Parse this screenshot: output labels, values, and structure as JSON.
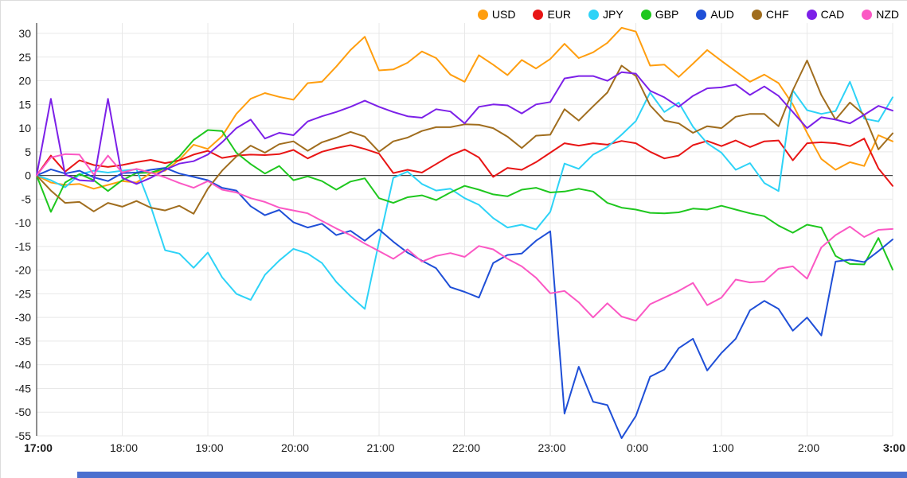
{
  "window": {
    "title": "Currency strength line chart"
  },
  "legend": {
    "position": "top-right"
  },
  "bottom_bar_color": "#4a6fcf",
  "chart_data": {
    "type": "line",
    "title": "",
    "xlabel": "",
    "ylabel": "",
    "ylim": [
      -55,
      30
    ],
    "ytick_step": 5,
    "grid": true,
    "zero_line": true,
    "x_start": "17:00",
    "x_end": "3:00",
    "sample_interval_minutes": 10,
    "points_per_series": 61,
    "hour_tick_labels": [
      "17:00",
      "18:00",
      "19:00",
      "20:00",
      "21:00",
      "22:00",
      "23:00",
      "0:00",
      "1:00",
      "2:00",
      "3:00"
    ],
    "bold_tick_labels": [
      "17:00",
      "3:00"
    ],
    "axis_color": "#444444",
    "grid_color": "#e8e8e8",
    "label_color": "#1a1a1a",
    "series": [
      {
        "name": "USD",
        "color": "#ff9e0f",
        "values": [
          0,
          -1.5,
          -2,
          -1.8,
          -2.8,
          -2,
          -1.2,
          -1.5,
          0.5,
          1,
          3.3,
          6.5,
          5.6,
          8.3,
          13,
          16.2,
          17.4,
          16.6,
          16,
          19.5,
          19.8,
          23,
          26.5,
          29.3,
          22.2,
          22.4,
          23.8,
          26.2,
          24.8,
          21.3,
          19.8,
          25.4,
          23.4,
          21.2,
          24.4,
          22.6,
          24.6,
          27.8,
          24.8,
          26,
          28,
          31.2,
          30.4,
          23.2,
          23.4,
          20.8,
          23.6,
          26.5,
          24.2,
          22,
          19.8,
          21.3,
          19.5,
          15,
          9,
          3.5,
          1.2,
          2.8,
          2,
          8.5,
          7.2
        ]
      },
      {
        "name": "EUR",
        "color": "#e81515",
        "values": [
          0,
          4.2,
          0.8,
          3.2,
          2.2,
          1.8,
          2.2,
          2.8,
          3.3,
          2.6,
          3.2,
          4.4,
          5.2,
          3.7,
          4.2,
          4.4,
          4.3,
          4.5,
          5.4,
          3.6,
          5,
          5.8,
          6.4,
          5.6,
          4.6,
          0.5,
          1.2,
          0.6,
          2.4,
          4.2,
          5.5,
          3.8,
          -0.3,
          1.6,
          1.2,
          2.8,
          4.8,
          6.8,
          6.3,
          6.8,
          6.5,
          7.3,
          6.8,
          5,
          3.6,
          4.2,
          6.4,
          7.3,
          6.2,
          7.4,
          6,
          7.2,
          7.4,
          3.2,
          6.8,
          7,
          6.8,
          6.2,
          7.8,
          1.5,
          -2.2
        ]
      },
      {
        "name": "JPY",
        "color": "#2ed3f7",
        "values": [
          0,
          -1,
          -2.5,
          0.2,
          1,
          0.6,
          1,
          1.3,
          -6.5,
          -15.8,
          -16.5,
          -19.5,
          -16.3,
          -21.5,
          -25,
          -26.3,
          -21,
          -18,
          -15.5,
          -16.5,
          -18.5,
          -22.5,
          -25.5,
          -28.2,
          -14,
          -0.5,
          0.8,
          -1.8,
          -3.2,
          -2.8,
          -4.8,
          -6.2,
          -9,
          -11,
          -10.4,
          -11.4,
          -7.7,
          2.5,
          1.4,
          4.4,
          6,
          8.6,
          11.5,
          17.5,
          13.4,
          15.4,
          10.3,
          6.8,
          4.8,
          1.2,
          2.6,
          -1.6,
          -3.3,
          18,
          13.8,
          13,
          13.6,
          19.8,
          12,
          11.4,
          16.5
        ]
      },
      {
        "name": "GBP",
        "color": "#1ec71e",
        "values": [
          0,
          -7.7,
          -1.5,
          0.3,
          -1,
          -3.3,
          -1,
          0.5,
          0.6,
          1.5,
          4,
          7.5,
          9.6,
          9.4,
          4.8,
          2.4,
          0.4,
          2,
          -1,
          -0.2,
          -1.2,
          -3,
          -1.3,
          -0.6,
          -4.8,
          -5.8,
          -4.6,
          -4.2,
          -5.2,
          -3.6,
          -2.2,
          -3,
          -4,
          -4.4,
          -3,
          -2.6,
          -3.6,
          -3.4,
          -2.8,
          -3.4,
          -5.8,
          -6.8,
          -7.2,
          -7.9,
          -8,
          -7.8,
          -7,
          -7.2,
          -6.4,
          -7.2,
          -8,
          -8.6,
          -10.6,
          -12.1,
          -10.4,
          -11,
          -17,
          -18.7,
          -18.8,
          -13.2,
          -19.9
        ]
      },
      {
        "name": "AUD",
        "color": "#1f4fd7",
        "values": [
          0,
          1.3,
          0.4,
          1,
          -0.4,
          -1.2,
          0.5,
          0.6,
          1.2,
          1.6,
          0.4,
          -0.3,
          -1,
          -2.6,
          -3.2,
          -6.5,
          -8.4,
          -7.3,
          -9.9,
          -11,
          -10.2,
          -12.6,
          -11.7,
          -13.8,
          -11.4,
          -14,
          -16.3,
          -18,
          -19.6,
          -23.6,
          -24.6,
          -25.8,
          -18.5,
          -16.8,
          -16.5,
          -13.8,
          -11.8,
          -50.3,
          -40.4,
          -47.8,
          -48.5,
          -55.5,
          -50.8,
          -42.5,
          -41,
          -36.5,
          -34.5,
          -41.2,
          -37.5,
          -34.5,
          -28.5,
          -26.5,
          -28.2,
          -32.8,
          -30,
          -33.8,
          -18.2,
          -17.8,
          -18.3,
          -16,
          -13.5
        ]
      },
      {
        "name": "CHF",
        "color": "#a06d1e",
        "values": [
          0,
          -3.2,
          -5.8,
          -5.6,
          -7.6,
          -5.8,
          -6.6,
          -5.4,
          -6.8,
          -7.4,
          -6.4,
          -8.1,
          -2.8,
          1,
          4,
          6.3,
          4.8,
          6.6,
          7.2,
          5.2,
          7,
          8,
          9.2,
          8.2,
          5,
          7.2,
          8,
          9.4,
          10.2,
          10.2,
          10.8,
          10.7,
          10,
          8.2,
          5.8,
          8.4,
          8.6,
          14,
          11.6,
          14.6,
          17.5,
          23.2,
          21,
          14.8,
          11.6,
          11,
          9,
          10.4,
          10,
          12.4,
          13,
          13,
          10.4,
          18,
          24.3,
          17,
          11.8,
          15.4,
          12.8,
          5.5,
          8.9
        ]
      },
      {
        "name": "CAD",
        "color": "#7c20e8",
        "values": [
          0,
          16.2,
          0.2,
          -1,
          -1.2,
          16.2,
          -0.5,
          -1.8,
          -0.5,
          1.2,
          2.5,
          3,
          4.4,
          7,
          10,
          11.8,
          7.8,
          9,
          8.5,
          11.4,
          12.5,
          13.4,
          14.5,
          15.8,
          14.5,
          13.4,
          12.5,
          12.2,
          14,
          13.5,
          11,
          14.5,
          15,
          14.8,
          13.1,
          15,
          15.5,
          20.5,
          21,
          21,
          20,
          21.8,
          21.5,
          17.9,
          16.5,
          14.5,
          16.8,
          18.4,
          18.6,
          19.2,
          17,
          18.8,
          16.8,
          13.4,
          10,
          12.3,
          11.8,
          11,
          12.8,
          14.7,
          13.7
        ]
      },
      {
        "name": "NZD",
        "color": "#fb58c4",
        "values": [
          0,
          3.8,
          4.5,
          4.4,
          0.2,
          4.2,
          0.6,
          1.4,
          0.6,
          -0.4,
          -1.6,
          -2.6,
          -1.2,
          -3,
          -3.6,
          -4.8,
          -5.6,
          -6.8,
          -7.4,
          -8,
          -9.6,
          -11.2,
          -12.6,
          -14.4,
          -16,
          -17.6,
          -15.6,
          -18.2,
          -17,
          -16.4,
          -17.2,
          -14.9,
          -15.6,
          -17.6,
          -19.2,
          -21.6,
          -24.9,
          -24.4,
          -26.8,
          -30,
          -27,
          -29.8,
          -30.7,
          -27.2,
          -25.8,
          -24.4,
          -22.7,
          -27.4,
          -25.8,
          -22,
          -22.6,
          -22.4,
          -19.7,
          -19.2,
          -21.8,
          -15.2,
          -12.6,
          -10.8,
          -13,
          -11.5,
          -11.3
        ]
      }
    ],
    "legend_entries": [
      "USD",
      "EUR",
      "JPY",
      "GBP",
      "AUD",
      "CHF",
      "CAD",
      "NZD"
    ]
  }
}
